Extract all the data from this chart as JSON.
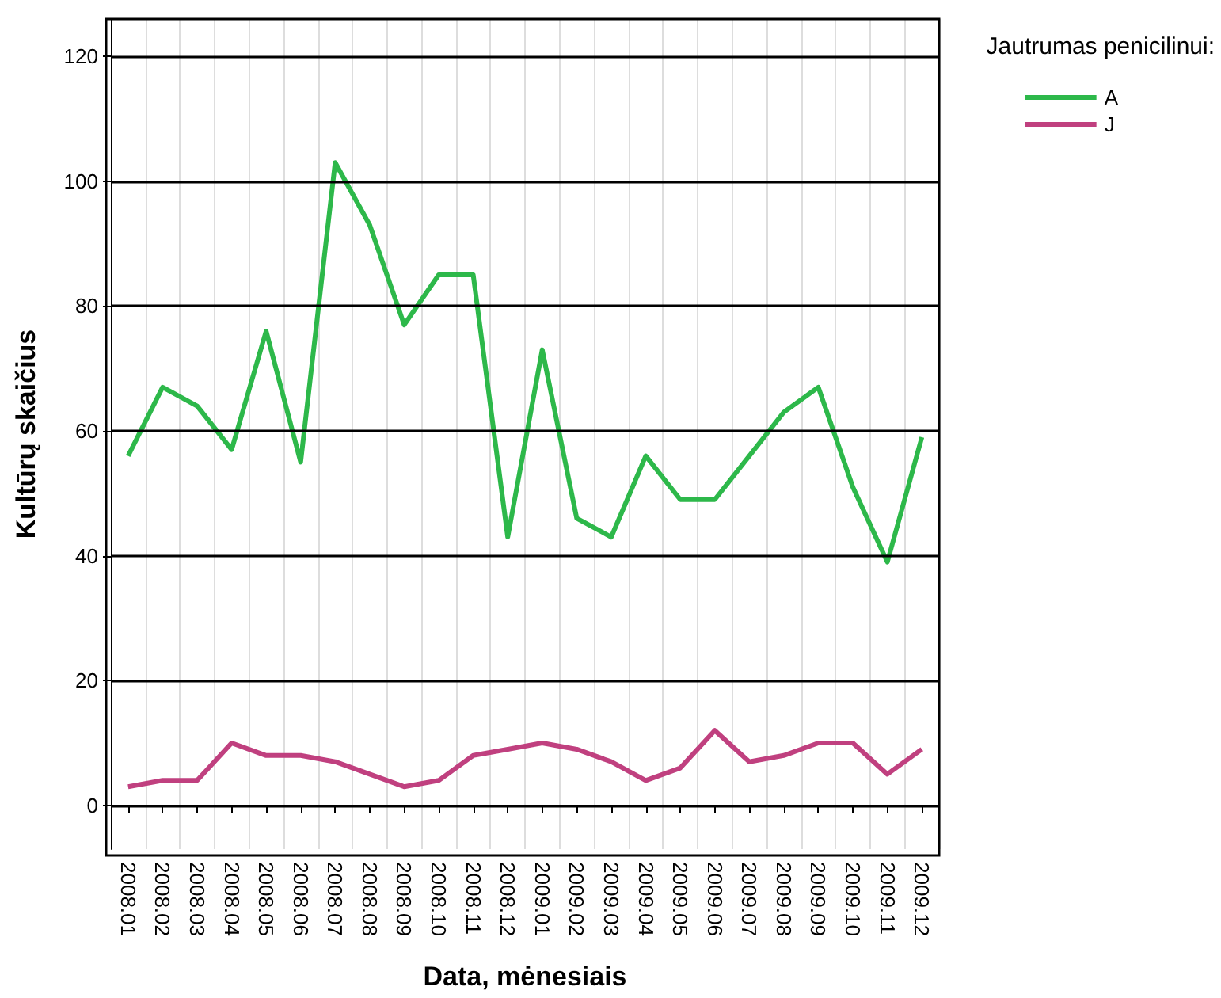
{
  "chart_data": {
    "type": "line",
    "xlabel": "Data, mėnesiais",
    "ylabel": "Kultūrų skaičius",
    "legend_title": "Jautrumas penicilinui:",
    "legend": "top right",
    "grid": true,
    "categories": [
      "2008.01",
      "2008.02",
      "2008.03",
      "2008.04",
      "2008.05",
      "2008.06",
      "2008.07",
      "2008.08",
      "2008.09",
      "2008.10",
      "2008.11",
      "2008.12",
      "2009.01",
      "2009.02",
      "2009.03",
      "2009.04",
      "2009.05",
      "2009.06",
      "2009.07",
      "2009.08",
      "2009.09",
      "2009.10",
      "2009.11",
      "2009.12"
    ],
    "series": [
      {
        "name": "A",
        "color": "#2db84a",
        "values": [
          56,
          67,
          64,
          57,
          76,
          55,
          103,
          93,
          77,
          85,
          85,
          43,
          73,
          46,
          43,
          56,
          49,
          49,
          56,
          63,
          67,
          51,
          39,
          59
        ]
      },
      {
        "name": "J",
        "color": "#c0407f",
        "values": [
          3,
          4,
          4,
          10,
          8,
          8,
          7,
          5,
          3,
          4,
          8,
          9,
          10,
          9,
          7,
          4,
          6,
          12,
          7,
          8,
          10,
          10,
          5,
          9
        ]
      }
    ],
    "ylim": [
      -7,
      126
    ],
    "yticks": [
      0,
      20,
      40,
      60,
      80,
      100,
      120
    ]
  }
}
